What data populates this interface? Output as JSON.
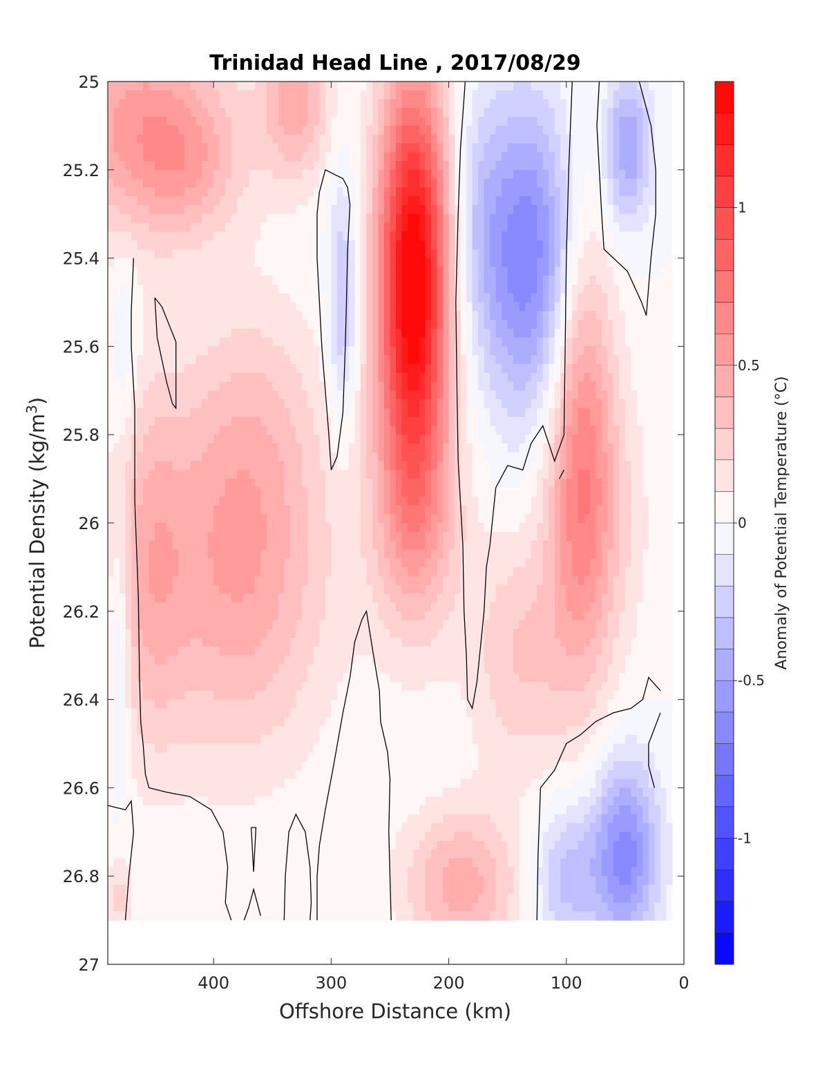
{
  "chart_data": {
    "type": "heatmap",
    "title": "Trinidad Head Line , 2017/08/29",
    "xlabel": "Offshore Distance (km)",
    "ylabel": "Potential Density (kg/m",
    "ylabel_sup": "3",
    "ylabel_close": ")",
    "colorbar_label": "Anomaly of Potential Temperature (°C)",
    "xlim": [
      490,
      0
    ],
    "x_reversed": true,
    "ylim": [
      25,
      27
    ],
    "y_reversed": true,
    "xticks": [
      400,
      300,
      200,
      100,
      0
    ],
    "yticks": [
      25,
      25.2,
      25.4,
      25.6,
      25.8,
      26,
      26.2,
      26.4,
      26.6,
      26.8,
      27
    ],
    "clim": [
      -1.4,
      1.4
    ],
    "colorbar_ticks": [
      1,
      0.5,
      0,
      -0.5,
      -1
    ],
    "colorbar_levels": 28,
    "data_x_range": [
      490,
      10
    ],
    "data_y_range": [
      25,
      26.9
    ],
    "colors": {
      "positive": "#ff0000",
      "negative": "#0000ff",
      "zero": "#ffffff",
      "contour": "#000000"
    },
    "grid": false,
    "anomaly_blobs": [
      {
        "x": 230,
        "y": 25.45,
        "sx": 22,
        "sy": 0.33,
        "amp": 1.45
      },
      {
        "x": 228,
        "y": 26.0,
        "sx": 28,
        "sy": 0.2,
        "amp": 0.35
      },
      {
        "x": 130,
        "y": 25.4,
        "sx": 30,
        "sy": 0.25,
        "amp": -0.7
      },
      {
        "x": 175,
        "y": 25.3,
        "sx": 18,
        "sy": 0.2,
        "amp": -0.2
      },
      {
        "x": 48,
        "y": 25.15,
        "sx": 14,
        "sy": 0.12,
        "amp": -0.5
      },
      {
        "x": 290,
        "y": 25.5,
        "sx": 9,
        "sy": 0.2,
        "amp": -0.35
      },
      {
        "x": 460,
        "y": 25.1,
        "sx": 55,
        "sy": 0.18,
        "amp": 0.55
      },
      {
        "x": 420,
        "y": 25.2,
        "sx": 30,
        "sy": 0.1,
        "amp": 0.2
      },
      {
        "x": 330,
        "y": 25.05,
        "sx": 20,
        "sy": 0.12,
        "amp": 0.45
      },
      {
        "x": 380,
        "y": 26.1,
        "sx": 55,
        "sy": 0.3,
        "amp": 0.5
      },
      {
        "x": 365,
        "y": 25.75,
        "sx": 40,
        "sy": 0.2,
        "amp": 0.15
      },
      {
        "x": 455,
        "y": 26.1,
        "sx": 22,
        "sy": 0.3,
        "amp": 0.3
      },
      {
        "x": 88,
        "y": 25.8,
        "sx": 20,
        "sy": 0.38,
        "amp": 0.6
      },
      {
        "x": 70,
        "y": 26.0,
        "sx": 30,
        "sy": 0.25,
        "amp": 0.2
      },
      {
        "x": 140,
        "y": 26.3,
        "sx": 30,
        "sy": 0.2,
        "amp": 0.3
      },
      {
        "x": 190,
        "y": 26.82,
        "sx": 35,
        "sy": 0.12,
        "amp": 0.45
      },
      {
        "x": 50,
        "y": 26.75,
        "sx": 20,
        "sy": 0.15,
        "amp": -0.65
      },
      {
        "x": 100,
        "y": 26.8,
        "sx": 20,
        "sy": 0.12,
        "amp": -0.35
      },
      {
        "x": 480,
        "y": 26.3,
        "sx": 6,
        "sy": 0.2,
        "amp": -0.25
      },
      {
        "x": 475,
        "y": 25.6,
        "sx": 8,
        "sy": 0.15,
        "amp": -0.15
      },
      {
        "x": 480,
        "y": 26.85,
        "sx": 8,
        "sy": 0.06,
        "amp": 0.25
      }
    ],
    "zero_contours": [
      [
        [
          468,
          25.4
        ],
        [
          470,
          25.52
        ],
        [
          470,
          25.6
        ],
        [
          467,
          25.74
        ],
        [
          467,
          25.95
        ],
        [
          464,
          26.17
        ],
        [
          463,
          26.35
        ],
        [
          462,
          26.45
        ],
        [
          460,
          26.5
        ],
        [
          458,
          26.57
        ],
        [
          455,
          26.6
        ],
        [
          440,
          26.61
        ],
        [
          420,
          26.62
        ],
        [
          402,
          26.65
        ],
        [
          392,
          26.7
        ],
        [
          388,
          26.78
        ],
        [
          390,
          26.86
        ],
        [
          385,
          26.9
        ]
      ],
      [
        [
          490,
          26.64
        ],
        [
          475,
          26.65
        ],
        [
          470,
          26.63
        ],
        [
          468,
          26.7
        ],
        [
          472,
          26.8
        ],
        [
          475,
          26.9
        ]
      ],
      [
        [
          450,
          25.49
        ],
        [
          444,
          25.51
        ],
        [
          432,
          25.59
        ],
        [
          432,
          25.74
        ],
        [
          435,
          25.73
        ],
        [
          440,
          25.68
        ],
        [
          448,
          25.58
        ],
        [
          450,
          25.49
        ]
      ],
      [
        [
          368,
          26.69
        ],
        [
          366,
          26.79
        ],
        [
          364,
          26.69
        ],
        [
          368,
          26.69
        ]
      ],
      [
        [
          374,
          26.9
        ],
        [
          370,
          26.87
        ],
        [
          366,
          26.83
        ],
        [
          360,
          26.89
        ]
      ],
      [
        [
          340,
          26.9
        ],
        [
          339,
          26.8
        ],
        [
          336,
          26.7
        ],
        [
          330,
          26.66
        ],
        [
          322,
          26.7
        ],
        [
          318,
          26.78
        ],
        [
          317,
          26.86
        ],
        [
          318,
          26.9
        ]
      ],
      [
        [
          312,
          26.9
        ],
        [
          312,
          26.8
        ],
        [
          310,
          26.73
        ],
        [
          305,
          26.65
        ],
        [
          298,
          26.55
        ],
        [
          290,
          26.43
        ],
        [
          284,
          26.35
        ],
        [
          280,
          26.27
        ],
        [
          274,
          26.22
        ],
        [
          270,
          26.2
        ],
        [
          264,
          26.3
        ],
        [
          259,
          26.38
        ],
        [
          258,
          26.45
        ],
        [
          252,
          26.52
        ],
        [
          250,
          26.58
        ],
        [
          251,
          26.7
        ],
        [
          250,
          26.8
        ],
        [
          249,
          26.9
        ]
      ],
      [
        [
          290,
          25.22
        ],
        [
          286,
          25.24
        ],
        [
          284,
          25.28
        ],
        [
          286,
          25.38
        ],
        [
          287,
          25.5
        ],
        [
          288,
          25.6
        ],
        [
          290,
          25.75
        ],
        [
          295,
          25.85
        ],
        [
          300,
          25.88
        ],
        [
          302,
          25.8
        ],
        [
          305,
          25.7
        ],
        [
          308,
          25.6
        ],
        [
          310,
          25.5
        ],
        [
          312,
          25.4
        ],
        [
          312,
          25.3
        ],
        [
          310,
          25.25
        ],
        [
          305,
          25.2
        ],
        [
          290,
          25.22
        ]
      ],
      [
        [
          186,
          25.0
        ],
        [
          190,
          25.15
        ],
        [
          192,
          25.3
        ],
        [
          194,
          25.5
        ],
        [
          193,
          25.7
        ],
        [
          192,
          25.86
        ],
        [
          188,
          26.05
        ],
        [
          187,
          26.2
        ],
        [
          185,
          26.3
        ],
        [
          184,
          26.4
        ],
        [
          180,
          26.42
        ],
        [
          176,
          26.36
        ],
        [
          170,
          26.2
        ],
        [
          168,
          26.1
        ],
        [
          165,
          26.05
        ],
        [
          160,
          25.92
        ],
        [
          150,
          25.87
        ],
        [
          137,
          25.88
        ],
        [
          130,
          25.82
        ],
        [
          120,
          25.78
        ],
        [
          110,
          25.86
        ],
        [
          102,
          25.8
        ],
        [
          101,
          25.6
        ],
        [
          100,
          25.4
        ],
        [
          98,
          25.2
        ],
        [
          95,
          25.0
        ]
      ],
      [
        [
          102,
          25.88
        ],
        [
          106,
          25.9
        ]
      ],
      [
        [
          72,
          25.0
        ],
        [
          74,
          25.1
        ],
        [
          72,
          25.2
        ],
        [
          70,
          25.3
        ],
        [
          68,
          25.38
        ],
        [
          60,
          25.4
        ],
        [
          48,
          25.43
        ],
        [
          36,
          25.5
        ],
        [
          32,
          25.53
        ],
        [
          28,
          25.4
        ],
        [
          24,
          25.3
        ],
        [
          24,
          25.2
        ],
        [
          28,
          25.1
        ],
        [
          38,
          25.0
        ]
      ],
      [
        [
          125,
          26.9
        ],
        [
          124,
          26.75
        ],
        [
          122,
          26.6
        ],
        [
          110,
          26.56
        ],
        [
          100,
          26.5
        ],
        [
          88,
          26.48
        ],
        [
          75,
          26.45
        ],
        [
          60,
          26.43
        ],
        [
          45,
          26.42
        ],
        [
          35,
          26.4
        ],
        [
          30,
          26.35
        ],
        [
          20,
          26.38
        ]
      ],
      [
        [
          20,
          26.43
        ],
        [
          30,
          26.5
        ],
        [
          30,
          26.55
        ],
        [
          25,
          26.6
        ]
      ]
    ]
  }
}
